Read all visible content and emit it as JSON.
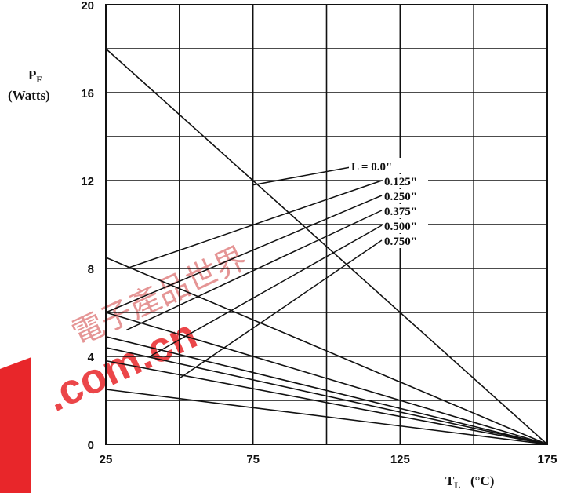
{
  "chart_data": {
    "type": "line",
    "xlabel": "T",
    "xlabel_sub": "L",
    "xlabel_unit": "(°C)",
    "ylabel": "P",
    "ylabel_sub": "F",
    "ylabel_unit": "(Watts)",
    "xlim": [
      25,
      175
    ],
    "ylim": [
      0,
      20
    ],
    "x_ticks": [
      "25",
      "75",
      "125",
      "175"
    ],
    "y_ticks": [
      "0",
      "4",
      "8",
      "12",
      "16",
      "20"
    ],
    "grid": true,
    "legend_title": "L = 0.0\"",
    "series": [
      {
        "name": "L = 0.0\"",
        "x": [
          25,
          175
        ],
        "y": [
          18.0,
          0
        ],
        "label_anchor": [
          75,
          11.8
        ]
      },
      {
        "name": "0.125\"",
        "x": [
          25,
          175
        ],
        "y": [
          8.5,
          0
        ],
        "label_anchor": [
          32,
          8.0
        ]
      },
      {
        "name": "0.250\"",
        "x": [
          25,
          175
        ],
        "y": [
          6.0,
          0
        ],
        "label_anchor": [
          25,
          6.0
        ]
      },
      {
        "name": "0.375\"",
        "x": [
          25,
          175
        ],
        "y": [
          4.9,
          0
        ],
        "label_anchor": [
          32,
          5.2
        ]
      },
      {
        "name": "0.500\"",
        "x": [
          25,
          175
        ],
        "y": [
          4.4,
          0
        ],
        "label_anchor": [
          40,
          4.0
        ]
      },
      {
        "name": "0.750\"",
        "x": [
          25,
          175
        ],
        "y": [
          3.8,
          0
        ],
        "label_anchor": [
          50,
          3.0
        ]
      },
      {
        "name": "",
        "x": [
          25,
          175
        ],
        "y": [
          2.5,
          0
        ],
        "label_anchor": [
          65,
          2.0
        ]
      }
    ],
    "legend_labels": [
      "0.125\"",
      "0.250\"",
      "0.375\"",
      "0.500\"",
      "0.750\""
    ]
  },
  "watermark": {
    "text": ".com.cn",
    "cjk": "電子產品世界",
    "color": "#e8262a"
  }
}
